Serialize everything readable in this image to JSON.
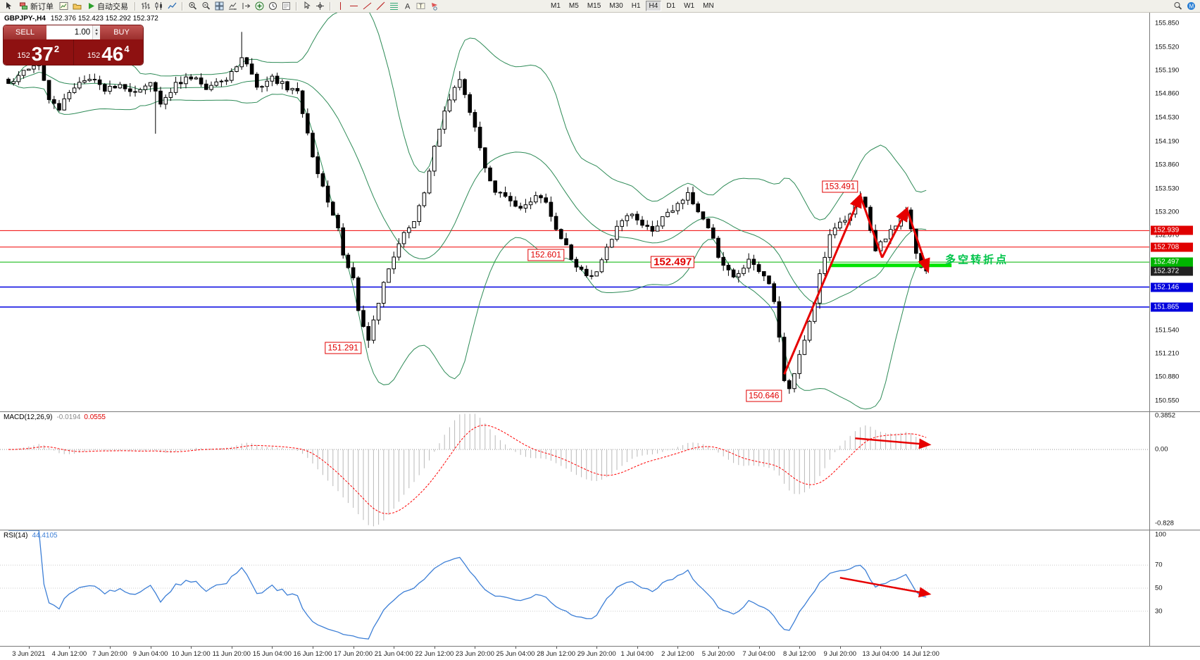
{
  "toolbar": {
    "new_order_label": "新订单",
    "autotrading_label": "自动交易",
    "timeframes": [
      "M1",
      "M5",
      "M15",
      "M30",
      "H1",
      "H4",
      "D1",
      "W1",
      "MN"
    ],
    "active_timeframe": "H4"
  },
  "main_chart": {
    "symbol_header": "GBPJPY-,H4",
    "ohlc_header": "152.376 152.423 152.292 152.372",
    "trade_panel": {
      "sell_label": "SELL",
      "buy_label": "BUY",
      "lot_value": "1.00",
      "sell_price_small": "152",
      "sell_price_big": "37",
      "sell_price_sup": "2",
      "buy_price_small": "152",
      "buy_price_big": "46",
      "buy_price_sup": "4"
    },
    "price_ticks": [
      "155.850",
      "155.520",
      "155.190",
      "154.860",
      "154.530",
      "154.190",
      "153.860",
      "153.530",
      "153.200",
      "152.870",
      "151.540",
      "151.210",
      "150.880",
      "150.550"
    ],
    "price_boxes": [
      {
        "text": "152.939",
        "price": 152.939,
        "bg": "#e00000"
      },
      {
        "text": "152.708",
        "price": 152.708,
        "bg": "#e00000"
      },
      {
        "text": "152.497",
        "price": 152.497,
        "bg": "#00b400"
      },
      {
        "text": "152.372",
        "price": 152.372,
        "bg": "#222222"
      },
      {
        "text": "152.146",
        "price": 152.146,
        "bg": "#0000dd"
      },
      {
        "text": "151.865",
        "price": 151.865,
        "bg": "#0000dd"
      }
    ],
    "hlines": [
      {
        "price": 152.939,
        "color": "#f00000",
        "w": 1
      },
      {
        "price": 152.708,
        "color": "#f00000",
        "w": 1
      },
      {
        "price": 152.497,
        "color": "#00b400",
        "w": 1
      },
      {
        "price": 152.146,
        "color": "#0000e0",
        "w": 1.5
      },
      {
        "price": 151.865,
        "color": "#0000e0",
        "w": 1.5
      }
    ],
    "green_segment": {
      "from_i": 162,
      "to_i": 186,
      "price": 152.45,
      "color": "#00e400",
      "width": 5
    },
    "callouts": [
      {
        "text": "153.491",
        "i": 164,
        "price": 153.56,
        "size": 12
      },
      {
        "text": "152.601",
        "i": 106,
        "price": 152.601,
        "size": 12
      },
      {
        "text": "152.497",
        "i": 131,
        "price": 152.497,
        "size": 15
      },
      {
        "text": "151.291",
        "i": 66,
        "price": 151.291,
        "size": 12
      },
      {
        "text": "150.646",
        "i": 149,
        "price": 150.62,
        "size": 12
      }
    ],
    "cn_annotation": {
      "text": "多空转折点",
      "i": 191,
      "price": 152.54,
      "color": "#00c44a"
    },
    "trend_arrows": [
      {
        "from": [
          153.0,
          150.92
        ],
        "to": [
          168,
          153.43
        ],
        "head": true
      },
      {
        "from": [
          168,
          153.43
        ],
        "to": [
          172.3,
          152.56
        ],
        "head": false
      },
      {
        "from": [
          172.3,
          152.56
        ],
        "to": [
          177.2,
          153.24
        ],
        "head": true
      },
      {
        "from": [
          177.2,
          153.24
        ],
        "to": [
          181.3,
          152.38
        ],
        "head": true
      }
    ],
    "series": {
      "count": 182,
      "waypoints": [
        [
          0,
          155.0
        ],
        [
          3,
          155.22
        ],
        [
          6,
          155.3
        ],
        [
          8,
          154.8
        ],
        [
          10,
          154.65
        ],
        [
          13,
          154.95
        ],
        [
          16,
          155.1
        ],
        [
          19,
          154.9
        ],
        [
          22,
          155.0
        ],
        [
          25,
          154.85
        ],
        [
          28,
          155.05
        ],
        [
          30,
          154.72
        ],
        [
          33,
          155.0
        ],
        [
          36,
          155.1
        ],
        [
          39,
          154.95
        ],
        [
          43,
          155.05
        ],
        [
          46,
          155.38
        ],
        [
          48,
          155.15
        ],
        [
          49,
          154.95
        ],
        [
          52,
          155.08
        ],
        [
          55,
          154.95
        ],
        [
          57,
          154.9
        ],
        [
          59,
          154.3
        ],
        [
          60,
          153.95
        ],
        [
          62,
          153.55
        ],
        [
          63,
          153.3
        ],
        [
          65,
          152.95
        ],
        [
          66,
          152.6
        ],
        [
          68,
          152.25
        ],
        [
          69,
          151.85
        ],
        [
          70,
          151.55
        ],
        [
          71,
          151.42
        ],
        [
          72,
          151.7
        ],
        [
          74,
          152.2
        ],
        [
          76,
          152.55
        ],
        [
          78,
          152.9
        ],
        [
          80,
          153.1
        ],
        [
          82,
          153.45
        ],
        [
          84,
          154.1
        ],
        [
          86,
          154.6
        ],
        [
          88,
          154.95
        ],
        [
          89,
          155.02
        ],
        [
          90,
          154.85
        ],
        [
          92,
          154.35
        ],
        [
          94,
          153.85
        ],
        [
          96,
          153.5
        ],
        [
          98,
          153.4
        ],
        [
          101,
          153.25
        ],
        [
          104,
          153.42
        ],
        [
          106,
          153.3
        ],
        [
          108,
          152.95
        ],
        [
          110,
          152.7
        ],
        [
          112,
          152.45
        ],
        [
          114,
          152.3
        ],
        [
          116,
          152.38
        ],
        [
          118,
          152.7
        ],
        [
          120,
          153.0
        ],
        [
          123,
          153.2
        ],
        [
          125,
          153.05
        ],
        [
          127,
          152.95
        ],
        [
          129,
          153.1
        ],
        [
          132,
          153.3
        ],
        [
          134,
          153.48
        ],
        [
          136,
          153.2
        ],
        [
          138,
          153.0
        ],
        [
          140,
          152.6
        ],
        [
          142,
          152.35
        ],
        [
          144,
          152.3
        ],
        [
          146,
          152.52
        ],
        [
          148,
          152.4
        ],
        [
          150,
          152.2
        ],
        [
          151,
          151.9
        ],
        [
          152,
          151.4
        ],
        [
          153,
          150.85
        ],
        [
          154,
          150.72
        ],
        [
          155,
          150.95
        ],
        [
          156,
          151.2
        ],
        [
          157,
          151.42
        ],
        [
          159,
          151.9
        ],
        [
          160,
          152.3
        ],
        [
          161,
          152.6
        ],
        [
          162,
          152.85
        ],
        [
          163,
          153.0
        ],
        [
          165,
          153.1
        ],
        [
          167,
          153.32
        ],
        [
          168,
          153.44
        ],
        [
          169,
          153.28
        ],
        [
          170,
          152.9
        ],
        [
          171,
          152.62
        ],
        [
          172,
          152.75
        ],
        [
          174,
          152.95
        ],
        [
          176,
          153.1
        ],
        [
          177,
          153.22
        ],
        [
          178,
          152.95
        ],
        [
          179,
          152.6
        ],
        [
          180,
          152.43
        ],
        [
          181,
          152.372
        ]
      ],
      "wick_lows": {
        "29": 154.3,
        "71": 151.291,
        "154": 150.646
      },
      "wick_highs": {
        "46": 155.73,
        "89": 155.18,
        "168": 153.491
      },
      "last_close": 152.372
    },
    "bollinger": {
      "period": 20,
      "deviation": 2,
      "color": "#2e8b57"
    }
  },
  "macd_panel": {
    "label": "MACD(12,26,9)",
    "main_value": "-0.0194",
    "signal_value": "0.0555",
    "scale_labels": [
      {
        "text": "0.3852",
        "value": 0.3852
      },
      {
        "text": "0.00",
        "value": 0
      },
      {
        "text": "-0.828",
        "value": -0.828
      }
    ],
    "range": [
      -0.9,
      0.42
    ],
    "histogram_color": "#b9b9b9",
    "signal_color": "#ff0000",
    "arrow": {
      "from": [
        167,
        0.125
      ],
      "to": [
        181.5,
        0.055
      ]
    }
  },
  "rsi_panel": {
    "label": "RSI(14)",
    "value": "44.4105",
    "scale_labels": [
      {
        "text": "100",
        "value": 100
      },
      {
        "text": "70",
        "value": 70
      },
      {
        "text": "50",
        "value": 50
      },
      {
        "text": "30",
        "value": 30
      }
    ],
    "levels": [
      70,
      50,
      30
    ],
    "line_color": "#3d7fd6",
    "arrow": {
      "from": [
        164,
        59
      ],
      "to": [
        181.5,
        45
      ]
    }
  },
  "time_axis": {
    "labels": [
      "3 Jun 2021",
      "4 Jun 12:00",
      "7 Jun 20:00",
      "9 Jun 04:00",
      "10 Jun 12:00",
      "11 Jun 20:00",
      "15 Jun 04:00",
      "16 Jun 12:00",
      "17 Jun 20:00",
      "21 Jun 04:00",
      "22 Jun 12:00",
      "23 Jun 20:00",
      "25 Jun 04:00",
      "28 Jun 12:00",
      "29 Jun 20:00",
      "1 Jul 04:00",
      "2 Jul 12:00",
      "5 Jul 20:00",
      "7 Jul 04:00",
      "8 Jul 12:00",
      "9 Jul 20:00",
      "13 Jul 04:00",
      "14 Jul 12:00"
    ]
  }
}
